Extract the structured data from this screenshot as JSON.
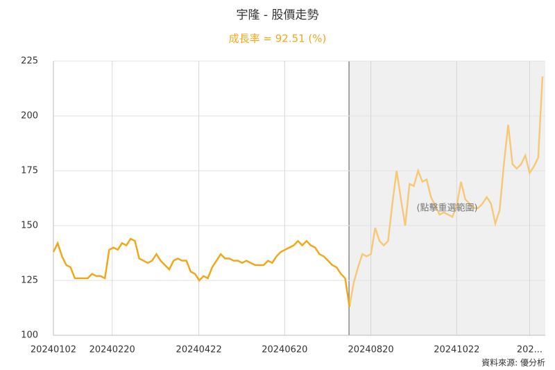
{
  "chart_data": {
    "type": "line",
    "title": "宇隆 - 股價走勢",
    "subtitle": "成長率 = 92.51 (%)",
    "annotation": "(點擊重選範圍)",
    "source": "資料來源: 優分析",
    "color": "#f0a818",
    "highlight_color": "#f6c978",
    "highlight_range": [
      68.9,
      114
    ],
    "grid": true,
    "xlim": [
      0,
      114
    ],
    "xticks": [
      {
        "value": 0,
        "label": "20240102"
      },
      {
        "value": 13.7,
        "label": "20240220"
      },
      {
        "value": 33.9,
        "label": "20240422"
      },
      {
        "value": 53.9,
        "label": "20240620"
      },
      {
        "value": 74,
        "label": "20240820"
      },
      {
        "value": 94,
        "label": "20241022"
      },
      {
        "value": 111,
        "label": "202..."
      }
    ],
    "ylim": [
      100,
      225
    ],
    "yticks": [
      100,
      125,
      150,
      175,
      200,
      225
    ],
    "values": [
      138,
      142,
      136,
      132,
      131,
      126,
      126,
      126,
      126,
      128,
      127,
      127,
      126,
      139,
      140,
      139,
      142,
      141,
      144,
      143,
      135,
      134,
      133,
      134,
      137,
      134,
      132,
      130,
      134,
      135,
      134,
      134,
      129,
      128,
      125,
      127,
      126,
      131,
      134,
      137,
      135,
      135,
      134,
      134,
      133,
      134,
      133,
      132,
      132,
      132,
      134,
      133,
      136,
      138,
      139,
      140,
      141,
      143,
      141,
      143,
      141,
      140,
      137,
      136,
      134,
      132,
      131,
      128,
      126,
      113,
      124,
      131,
      137,
      136,
      137,
      149,
      143,
      141,
      143,
      160,
      175,
      162,
      150,
      169,
      168,
      175,
      170,
      171,
      163,
      159,
      155,
      156,
      155,
      154,
      159,
      170,
      162,
      160,
      158,
      158,
      160,
      163,
      160,
      151,
      157,
      178,
      196,
      178,
      176,
      178,
      182,
      174,
      177,
      181,
      218
    ]
  }
}
